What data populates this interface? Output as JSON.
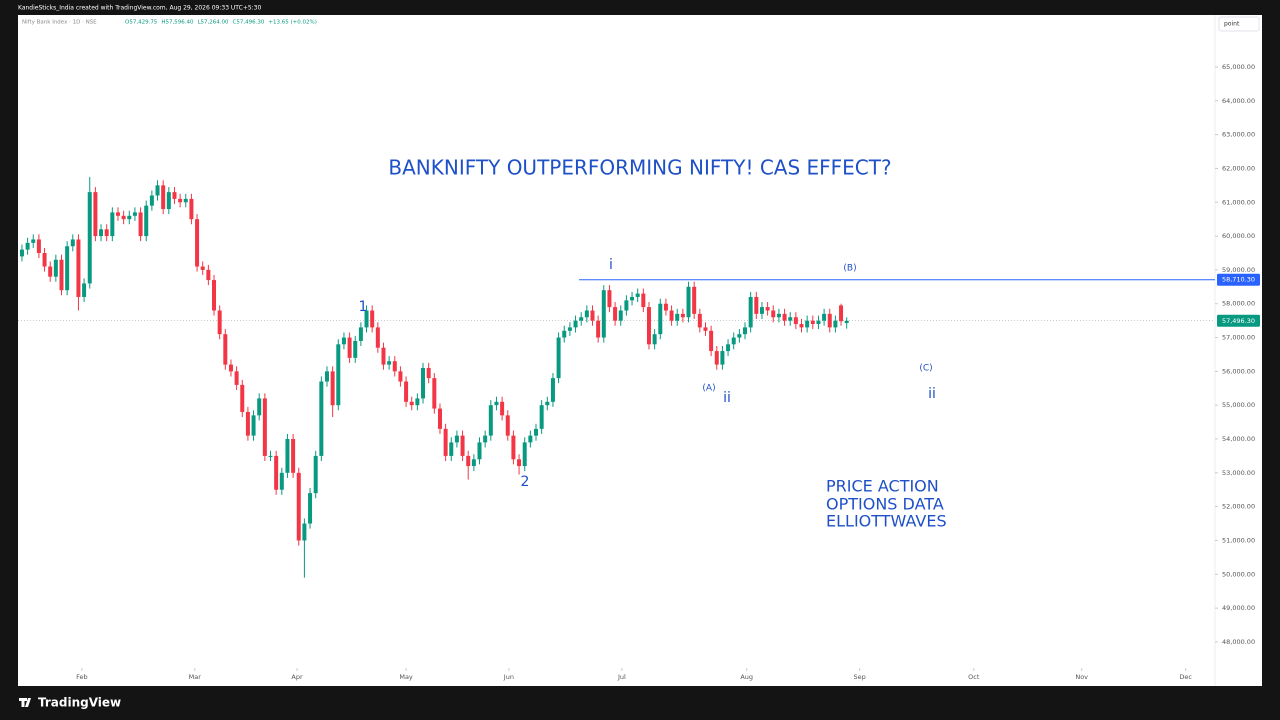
{
  "chart_data": {
    "type": "candlestick",
    "header": "KandieSticks_India created with TradingView.com, Aug 29, 2026 09:33 UTC+5:30",
    "symbol": "Nifty Bank Index · 1D · NSE",
    "ohlc_text": [
      "O57,429.75",
      "H57,596.40",
      "L57,264.00",
      "C57,496.30",
      "+13.65 (+0.02%)"
    ],
    "scale_mode": "point",
    "brand": "TradingView",
    "title": "BANKNIFTY OUTPERFORMING NIFTY! CAS EFFECT?",
    "annotations": [
      "i",
      "(B)",
      "1",
      "2",
      "(A)",
      "ii",
      "(C)",
      "ii",
      "PRICE ACTION",
      "OPTIONS DATA",
      "ELLIOTTWAVES"
    ],
    "up_color": "#089981",
    "down_color": "#f23645",
    "annotation_color": "#1e50c8",
    "open": [
      59400,
      59600,
      59800,
      59900,
      59500,
      59100,
      58800,
      59300,
      58400,
      59700,
      59900,
      58200,
      58600,
      61300,
      60000,
      60200,
      60000,
      60700,
      60600,
      60500,
      60600,
      60700,
      60000,
      60900,
      61200,
      61500,
      60800,
      61300,
      61100,
      61000,
      61100,
      60500,
      59100,
      59000,
      58700,
      57800,
      57100,
      56200,
      56000,
      55600,
      54800,
      54100,
      54700,
      55200,
      53500,
      53500,
      52500,
      53000,
      54000,
      53000,
      51000,
      51500,
      52400,
      53500,
      55700,
      56000,
      55000,
      56800,
      57000,
      56400,
      56900,
      57300,
      57800,
      57300,
      56700,
      56200,
      56300,
      56000,
      55700,
      55100,
      55000,
      55200,
      56100,
      55800,
      54900,
      54300,
      53500,
      53900,
      54100,
      53500,
      53200,
      53400,
      53900,
      54100,
      55000,
      55100,
      54700,
      54100,
      53400,
      53200,
      53900,
      54100,
      54300,
      55000,
      55100,
      55800,
      57000,
      57200,
      57300,
      57500,
      57600,
      57800,
      57500,
      57000,
      58400,
      57900,
      57500,
      57800,
      58100,
      58200,
      58300,
      57900,
      56800,
      57100,
      58000,
      57800,
      57500,
      57700,
      57600,
      58500,
      57700,
      57300,
      57200,
      56600,
      56200,
      56600,
      56800,
      57000,
      57100,
      57300,
      58200,
      57700,
      57900,
      57800,
      57600,
      57700,
      57500,
      57600,
      57400,
      57300,
      57500,
      57400,
      57500,
      57700,
      57300,
      57950,
      57429.75
    ],
    "high": [
      59750,
      59950,
      60050,
      60050,
      59650,
      59250,
      59450,
      59450,
      59850,
      60050,
      60050,
      58750,
      61750,
      61450,
      60350,
      60350,
      60850,
      60850,
      60750,
      60750,
      60850,
      60850,
      61050,
      61350,
      61650,
      61650,
      61450,
      61450,
      61250,
      61250,
      61250,
      60650,
      59250,
      59150,
      58850,
      57950,
      57250,
      56350,
      56150,
      55750,
      54950,
      54850,
      55350,
      55350,
      53650,
      53650,
      53150,
      54150,
      54150,
      53150,
      51650,
      52550,
      53650,
      55850,
      56150,
      56150,
      56950,
      57150,
      57150,
      57050,
      57450,
      57950,
      57950,
      57450,
      56850,
      56450,
      56450,
      56150,
      55850,
      55250,
      55350,
      56250,
      56250,
      55950,
      55050,
      54450,
      54050,
      54250,
      54250,
      53650,
      53550,
      54050,
      54250,
      55150,
      55250,
      55250,
      54850,
      54250,
      53550,
      54050,
      54250,
      54450,
      55150,
      55250,
      55950,
      57150,
      57350,
      57450,
      57650,
      57750,
      57950,
      57950,
      57650,
      58550,
      58550,
      58050,
      57950,
      58250,
      58350,
      58450,
      58450,
      58050,
      57250,
      58150,
      58150,
      57950,
      57850,
      57850,
      58650,
      58650,
      57850,
      57450,
      57350,
      56750,
      56750,
      56950,
      57150,
      57250,
      57450,
      58350,
      58350,
      58050,
      58050,
      57950,
      57850,
      57850,
      57750,
      57750,
      57550,
      57650,
      57650,
      57650,
      57850,
      57850,
      57650,
      58000,
      57596.4
    ],
    "low": [
      59250,
      59450,
      59650,
      59350,
      58950,
      58650,
      58650,
      58250,
      58250,
      59550,
      57800,
      58050,
      58450,
      59850,
      59850,
      59850,
      59850,
      60450,
      60350,
      60350,
      60450,
      59850,
      59850,
      60750,
      61050,
      60650,
      60650,
      60950,
      60850,
      60850,
      60350,
      58950,
      58850,
      58550,
      57650,
      56950,
      56050,
      55850,
      55450,
      54650,
      53950,
      53950,
      54550,
      53350,
      53350,
      52350,
      52350,
      52850,
      52850,
      50850,
      49900,
      51350,
      52250,
      53350,
      55550,
      54650,
      54850,
      56650,
      56250,
      56250,
      56750,
      57150,
      57150,
      56550,
      56050,
      56050,
      55850,
      55550,
      54950,
      54850,
      54850,
      55050,
      55650,
      54750,
      54150,
      53350,
      53350,
      53750,
      53350,
      52800,
      53050,
      53250,
      53750,
      53950,
      54850,
      54550,
      53950,
      53250,
      52950,
      53050,
      53750,
      53950,
      54150,
      54850,
      54950,
      55650,
      56850,
      57050,
      57150,
      57350,
      57450,
      57350,
      56850,
      56850,
      57750,
      57350,
      57350,
      57650,
      57950,
      58050,
      57750,
      56650,
      56650,
      56950,
      57650,
      57350,
      57350,
      57450,
      57450,
      57550,
      57150,
      57050,
      56450,
      56050,
      56050,
      56450,
      56650,
      56850,
      56950,
      57150,
      57550,
      57550,
      57650,
      57450,
      57450,
      57350,
      57350,
      57250,
      57150,
      57150,
      57250,
      57250,
      57350,
      57150,
      57150,
      57350,
      57264
    ],
    "close": [
      59600,
      59800,
      59900,
      59500,
      59100,
      58800,
      59300,
      58400,
      59700,
      59900,
      58200,
      58600,
      61300,
      60000,
      60200,
      60000,
      60700,
      60600,
      60500,
      60600,
      60700,
      60000,
      60900,
      61200,
      61500,
      60800,
      61300,
      61100,
      61000,
      61100,
      60500,
      59100,
      59000,
      58700,
      57800,
      57100,
      56200,
      56000,
      55600,
      54800,
      54100,
      54700,
      55200,
      53500,
      53500,
      52500,
      53000,
      54000,
      53000,
      51000,
      51500,
      52400,
      53500,
      55700,
      56000,
      55000,
      56800,
      57000,
      56400,
      56900,
      57300,
      57800,
      57300,
      56700,
      56200,
      56300,
      56000,
      55700,
      55100,
      55000,
      55200,
      56100,
      55800,
      54900,
      54300,
      53500,
      53900,
      54100,
      53500,
      53200,
      53400,
      53900,
      54100,
      55000,
      55100,
      54700,
      54100,
      53400,
      53200,
      53900,
      54100,
      54300,
      55000,
      55100,
      55800,
      57000,
      57200,
      57300,
      57500,
      57600,
      57800,
      57500,
      57000,
      58400,
      57900,
      57500,
      57800,
      58100,
      58200,
      58300,
      57900,
      56800,
      57100,
      58000,
      57800,
      57500,
      57700,
      57600,
      58500,
      57700,
      57300,
      57200,
      56600,
      56200,
      56600,
      56800,
      57000,
      57100,
      57300,
      58200,
      57700,
      57900,
      57800,
      57600,
      57700,
      57500,
      57600,
      57400,
      57300,
      57500,
      57400,
      57500,
      57700,
      57300,
      57500,
      57482.65,
      57496.3
    ],
    "price_lines": [
      {
        "value": 58710.3,
        "label": "58,710.30",
        "color": "#2962ff"
      },
      {
        "value": 57496.3,
        "label": "57,496.30",
        "color": "#089981"
      }
    ],
    "xlim": [
      -0.7,
      211.2
    ],
    "xticks": [
      {
        "value": 10.6,
        "label": "Feb"
      },
      {
        "value": 30.6,
        "label": "Mar"
      },
      {
        "value": 48.7,
        "label": "Apr"
      },
      {
        "value": 68,
        "label": "May"
      },
      {
        "value": 86.2,
        "label": "Jun"
      },
      {
        "value": 106.2,
        "label": "Jul"
      },
      {
        "value": 128.3,
        "label": "Aug"
      },
      {
        "value": 148.3,
        "label": "Sep"
      },
      {
        "value": 168.5,
        "label": "Oct"
      },
      {
        "value": 187.6,
        "label": "Nov"
      },
      {
        "value": 206,
        "label": "Dec"
      }
    ],
    "ylim": [
      46697,
      66537
    ],
    "yticks": [
      {
        "value": 65000,
        "label": "65,000.00"
      },
      {
        "value": 64000,
        "label": "64,000.00"
      },
      {
        "value": 63000,
        "label": "63,000.00"
      },
      {
        "value": 62000,
        "label": "62,000.00"
      },
      {
        "value": 61000,
        "label": "61,000.00"
      },
      {
        "value": 60000,
        "label": "60,000.00"
      },
      {
        "value": 59000,
        "label": "59,000.00"
      },
      {
        "value": 58000,
        "label": "58,000.00"
      },
      {
        "value": 57000,
        "label": "57,000.00"
      },
      {
        "value": 56000,
        "label": "56,000.00"
      },
      {
        "value": 55000,
        "label": "55,000.00"
      },
      {
        "value": 54000,
        "label": "54,000.00"
      },
      {
        "value": 53000,
        "label": "53,000.00"
      },
      {
        "value": 52000,
        "label": "52,000.00"
      },
      {
        "value": 51000,
        "label": "51,000.00"
      },
      {
        "value": 50000,
        "label": "50,000.00"
      },
      {
        "value": 49000,
        "label": "49,000.00"
      },
      {
        "value": 48000,
        "label": "48,000.00"
      }
    ],
    "grid": false
  }
}
